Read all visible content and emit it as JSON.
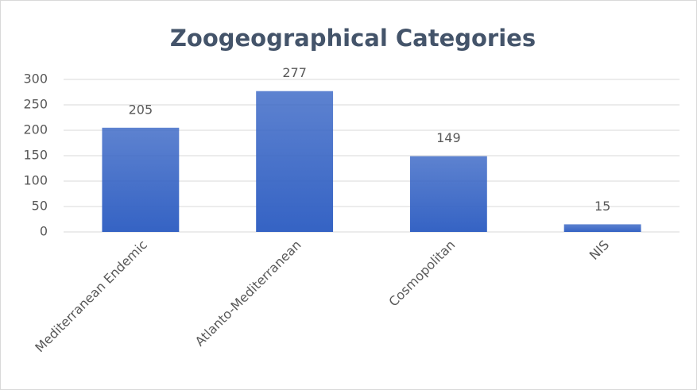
{
  "chart_data": {
    "type": "bar",
    "title": "Zoogeographical Categories",
    "categories": [
      "Mediterranean Endemic",
      "Atlanto-Mediterranean",
      "Cosmopolitan",
      "NIS"
    ],
    "values": [
      205,
      277,
      149,
      15
    ],
    "color": "#3563c4",
    "ylim": [
      0,
      300
    ],
    "yticks": [
      0,
      50,
      100,
      150,
      200,
      250,
      300
    ],
    "grid": true
  }
}
